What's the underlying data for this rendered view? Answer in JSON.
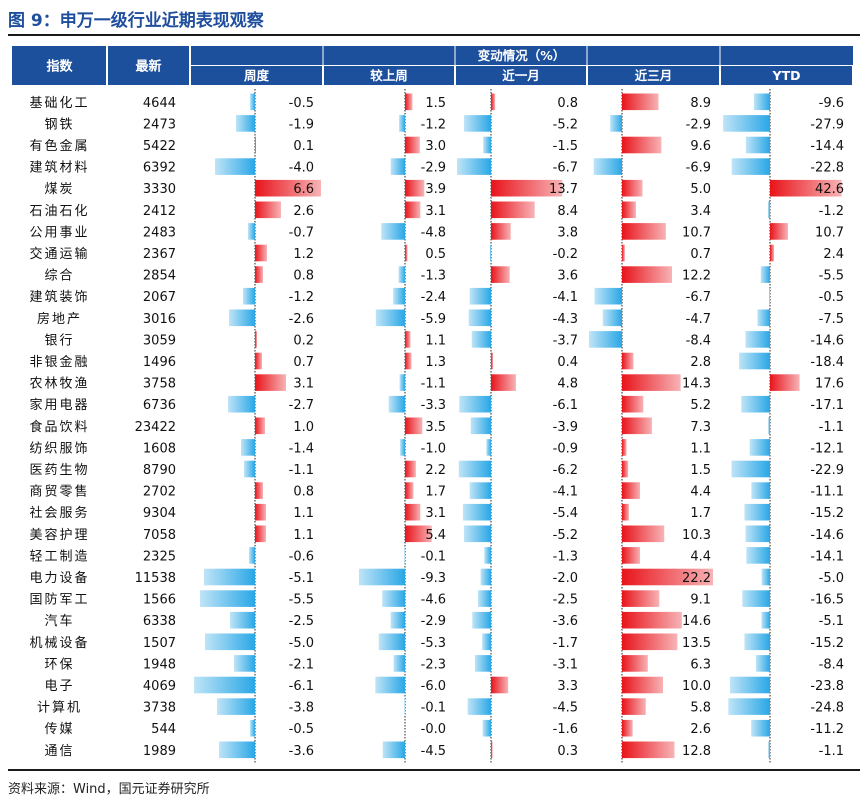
{
  "figure": {
    "title": "图 9：申万一级行业近期表现观察",
    "source": "资料来源：Wind，国元证券研究所"
  },
  "colors": {
    "header_bg": "#1c4f9c",
    "header_text": "#ffffff",
    "positive_bar": "#e8141b",
    "negative_bar": "#29a7e6"
  },
  "chart_data": {
    "type": "table",
    "header": {
      "col_index": "指数",
      "col_latest": "最新",
      "group": "变动情况（%）",
      "sub": [
        "周度",
        "较上周",
        "近一月",
        "近三月",
        "YTD"
      ]
    },
    "rows": [
      {
        "name": "基础化工",
        "latest": "4644",
        "values": [
          -0.5,
          1.5,
          0.8,
          8.9,
          -9.6
        ],
        "labels": [
          "-0.5",
          "1.5",
          "0.8",
          "8.9",
          "-9.6"
        ]
      },
      {
        "name": "钢铁",
        "latest": "2473",
        "values": [
          -1.9,
          -1.2,
          -5.2,
          -2.9,
          -27.9
        ],
        "labels": [
          "-1.9",
          "-1.2",
          "-5.2",
          "-2.9",
          "-27.9"
        ]
      },
      {
        "name": "有色金属",
        "latest": "5422",
        "values": [
          0.1,
          3.0,
          -1.5,
          9.6,
          -14.4
        ],
        "labels": [
          "0.1",
          "3.0",
          "-1.5",
          "9.6",
          "-14.4"
        ]
      },
      {
        "name": "建筑材料",
        "latest": "6392",
        "values": [
          -4.0,
          -2.9,
          -6.7,
          -6.9,
          -22.8
        ],
        "labels": [
          "-4.0",
          "-2.9",
          "-6.7",
          "-6.9",
          "-22.8"
        ]
      },
      {
        "name": "煤炭",
        "latest": "3330",
        "values": [
          6.6,
          3.9,
          13.7,
          5.0,
          42.6
        ],
        "labels": [
          "6.6",
          "3.9",
          "13.7",
          "5.0",
          "42.6"
        ]
      },
      {
        "name": "石油石化",
        "latest": "2412",
        "values": [
          2.6,
          3.1,
          8.4,
          3.4,
          -1.2
        ],
        "labels": [
          "2.6",
          "3.1",
          "8.4",
          "3.4",
          "-1.2"
        ]
      },
      {
        "name": "公用事业",
        "latest": "2483",
        "values": [
          -0.7,
          -4.8,
          3.8,
          10.7,
          10.7
        ],
        "labels": [
          "-0.7",
          "-4.8",
          "3.8",
          "10.7",
          "10.7"
        ]
      },
      {
        "name": "交通运输",
        "latest": "2367",
        "values": [
          1.2,
          0.5,
          -0.2,
          0.7,
          2.4
        ],
        "labels": [
          "1.2",
          "0.5",
          "-0.2",
          "0.7",
          "2.4"
        ]
      },
      {
        "name": "综合",
        "latest": "2854",
        "values": [
          0.8,
          -1.3,
          3.6,
          12.2,
          -5.5
        ],
        "labels": [
          "0.8",
          "-1.3",
          "3.6",
          "12.2",
          "-5.5"
        ]
      },
      {
        "name": "建筑装饰",
        "latest": "2067",
        "values": [
          -1.2,
          -2.4,
          -4.1,
          -6.7,
          -0.5
        ],
        "labels": [
          "-1.2",
          "-2.4",
          "-4.1",
          "-6.7",
          "-0.5"
        ]
      },
      {
        "name": "房地产",
        "latest": "3016",
        "values": [
          -2.6,
          -5.9,
          -4.3,
          -4.7,
          -7.5
        ],
        "labels": [
          "-2.6",
          "-5.9",
          "-4.3",
          "-4.7",
          "-7.5"
        ]
      },
      {
        "name": "银行",
        "latest": "3059",
        "values": [
          0.2,
          1.1,
          -3.7,
          -8.4,
          -14.6
        ],
        "labels": [
          "0.2",
          "1.1",
          "-3.7",
          "-8.4",
          "-14.6"
        ]
      },
      {
        "name": "非银金融",
        "latest": "1496",
        "values": [
          0.7,
          1.3,
          0.4,
          2.8,
          -18.4
        ],
        "labels": [
          "0.7",
          "1.3",
          "0.4",
          "2.8",
          "-18.4"
        ]
      },
      {
        "name": "农林牧渔",
        "latest": "3758",
        "values": [
          3.1,
          -1.1,
          4.8,
          14.3,
          17.6
        ],
        "labels": [
          "3.1",
          "-1.1",
          "4.8",
          "14.3",
          "17.6"
        ]
      },
      {
        "name": "家用电器",
        "latest": "6736",
        "values": [
          -2.7,
          -3.3,
          -6.1,
          5.2,
          -17.1
        ],
        "labels": [
          "-2.7",
          "-3.3",
          "-6.1",
          "5.2",
          "-17.1"
        ]
      },
      {
        "name": "食品饮料",
        "latest": "23422",
        "values": [
          1.0,
          3.5,
          -3.9,
          7.3,
          -1.1
        ],
        "labels": [
          "1.0",
          "3.5",
          "-3.9",
          "7.3",
          "-1.1"
        ]
      },
      {
        "name": "纺织服饰",
        "latest": "1608",
        "values": [
          -1.4,
          -1.0,
          -0.9,
          1.1,
          -12.1
        ],
        "labels": [
          "-1.4",
          "-1.0",
          "-0.9",
          "1.1",
          "-12.1"
        ]
      },
      {
        "name": "医药生物",
        "latest": "8790",
        "values": [
          -1.1,
          2.2,
          -6.2,
          1.5,
          -22.9
        ],
        "labels": [
          "-1.1",
          "2.2",
          "-6.2",
          "1.5",
          "-22.9"
        ]
      },
      {
        "name": "商贸零售",
        "latest": "2702",
        "values": [
          0.8,
          1.7,
          -4.1,
          4.4,
          -11.1
        ],
        "labels": [
          "0.8",
          "1.7",
          "-4.1",
          "4.4",
          "-11.1"
        ]
      },
      {
        "name": "社会服务",
        "latest": "9304",
        "values": [
          1.1,
          3.1,
          -5.4,
          1.7,
          -15.2
        ],
        "labels": [
          "1.1",
          "3.1",
          "-5.4",
          "1.7",
          "-15.2"
        ]
      },
      {
        "name": "美容护理",
        "latest": "7058",
        "values": [
          1.1,
          5.4,
          -5.2,
          10.3,
          -14.6
        ],
        "labels": [
          "1.1",
          "5.4",
          "-5.2",
          "10.3",
          "-14.6"
        ]
      },
      {
        "name": "轻工制造",
        "latest": "2325",
        "values": [
          -0.6,
          -0.1,
          -1.3,
          4.4,
          -14.1
        ],
        "labels": [
          "-0.6",
          "-0.1",
          "-1.3",
          "4.4",
          "-14.1"
        ]
      },
      {
        "name": "电力设备",
        "latest": "11538",
        "values": [
          -5.1,
          -9.3,
          -2.0,
          22.2,
          -5.0
        ],
        "labels": [
          "-5.1",
          "-9.3",
          "-2.0",
          "22.2",
          "-5.0"
        ]
      },
      {
        "name": "国防军工",
        "latest": "1566",
        "values": [
          -5.5,
          -4.6,
          -2.5,
          9.1,
          -16.5
        ],
        "labels": [
          "-5.5",
          "-4.6",
          "-2.5",
          "9.1",
          "-16.5"
        ]
      },
      {
        "name": "汽车",
        "latest": "6338",
        "values": [
          -2.5,
          -2.9,
          -3.6,
          14.6,
          -5.1
        ],
        "labels": [
          "-2.5",
          "-2.9",
          "-3.6",
          "14.6",
          "-5.1"
        ]
      },
      {
        "name": "机械设备",
        "latest": "1507",
        "values": [
          -5.0,
          -5.3,
          -1.7,
          13.5,
          -15.2
        ],
        "labels": [
          "-5.0",
          "-5.3",
          "-1.7",
          "13.5",
          "-15.2"
        ]
      },
      {
        "name": "环保",
        "latest": "1948",
        "values": [
          -2.1,
          -2.3,
          -3.1,
          6.3,
          -8.4
        ],
        "labels": [
          "-2.1",
          "-2.3",
          "-3.1",
          "6.3",
          "-8.4"
        ]
      },
      {
        "name": "电子",
        "latest": "4069",
        "values": [
          -6.1,
          -6.0,
          3.3,
          10.0,
          -23.8
        ],
        "labels": [
          "-6.1",
          "-6.0",
          "3.3",
          "10.0",
          "-23.8"
        ]
      },
      {
        "name": "计算机",
        "latest": "3738",
        "values": [
          -3.8,
          -0.1,
          -4.5,
          5.8,
          -24.8
        ],
        "labels": [
          "-3.8",
          "-0.1",
          "-4.5",
          "5.8",
          "-24.8"
        ]
      },
      {
        "name": "传媒",
        "latest": "544",
        "values": [
          -0.5,
          -0.0,
          -1.6,
          2.6,
          -11.2
        ],
        "labels": [
          "-0.5",
          "-0.0",
          "-1.6",
          "2.6",
          "-11.2"
        ]
      },
      {
        "name": "通信",
        "latest": "1989",
        "values": [
          -3.6,
          -4.5,
          0.3,
          12.8,
          -1.1
        ],
        "labels": [
          "-3.6",
          "-4.5",
          "0.3",
          "12.8",
          "-1.1"
        ]
      }
    ]
  }
}
